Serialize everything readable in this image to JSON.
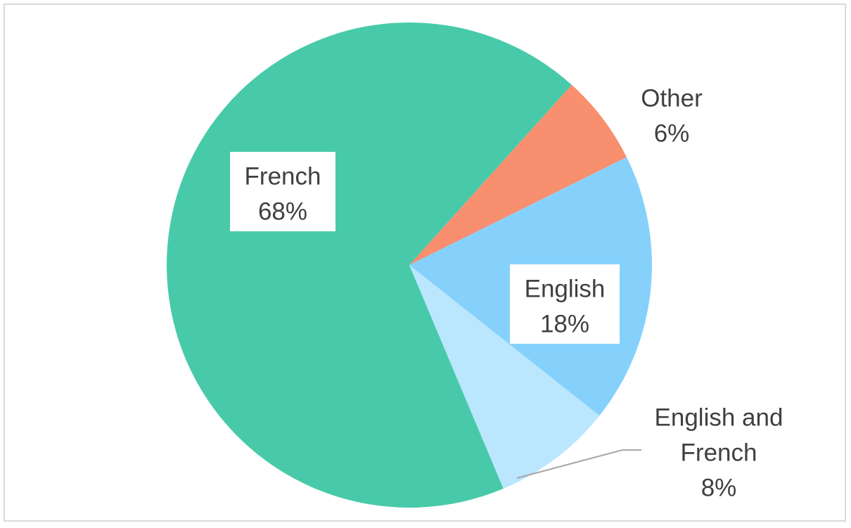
{
  "chart_data": {
    "type": "pie",
    "title": "",
    "start_angle_deg": -48,
    "direction": "clockwise",
    "slices": [
      {
        "name": "Other",
        "value": 6,
        "label": "6%",
        "color": "#F88F6E"
      },
      {
        "name": "English",
        "value": 18,
        "label": "18%",
        "color": "#85D1FC"
      },
      {
        "name": "English and French",
        "value": 8,
        "label": "8%",
        "color": "#BAE6FE"
      },
      {
        "name": "French",
        "value": 68,
        "label": "68%",
        "color": "#48CAAA"
      }
    ],
    "legend": "none",
    "data_labels": "category-and-percent"
  }
}
